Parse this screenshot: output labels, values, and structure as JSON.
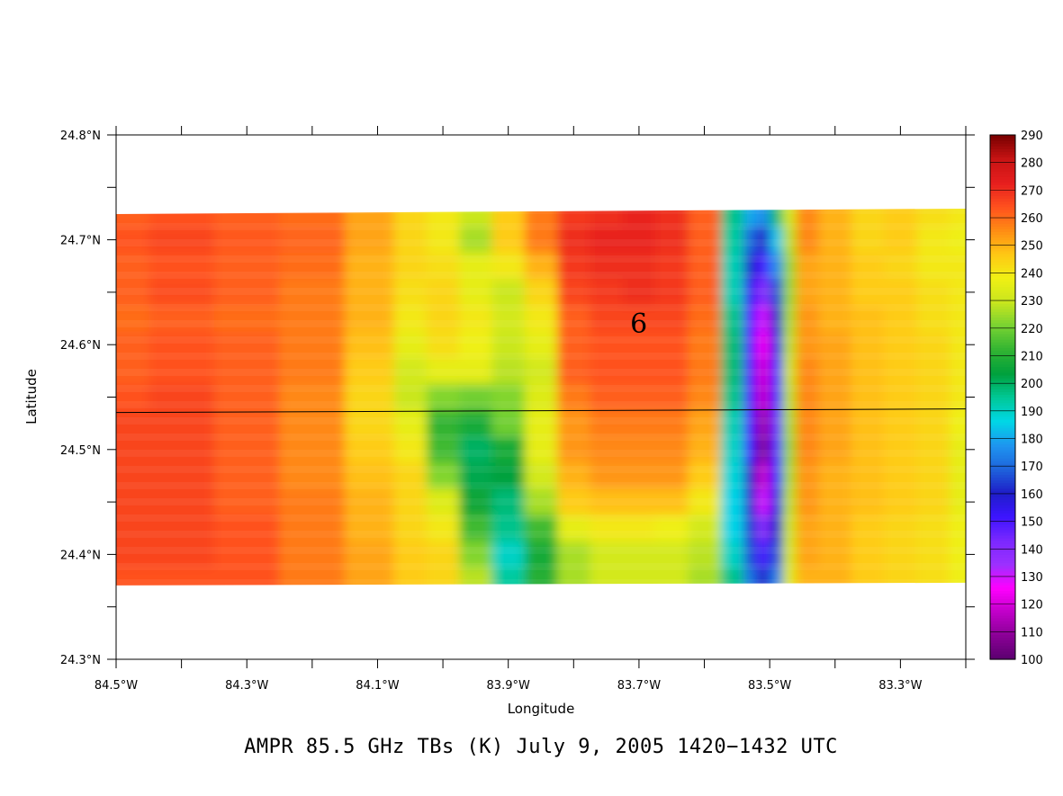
{
  "chart_data": {
    "type": "heatmap",
    "title": "AMPR 85.5 GHz TBs (K) July 9, 2005 1420−1432 UTC",
    "xlabel": "Longitude",
    "ylabel": "Latitude",
    "xlim": [
      -84.5,
      -83.2
    ],
    "ylim": [
      24.3,
      24.8
    ],
    "x_ticks": [
      {
        "value": -84.5,
        "label": "84.5°W"
      },
      {
        "value": -84.3,
        "label": "84.3°W"
      },
      {
        "value": -84.1,
        "label": "84.1°W"
      },
      {
        "value": -83.9,
        "label": "83.9°W"
      },
      {
        "value": -83.7,
        "label": "83.7°W"
      },
      {
        "value": -83.5,
        "label": "83.5°W"
      },
      {
        "value": -83.3,
        "label": "83.3°W"
      }
    ],
    "y_ticks": [
      {
        "value": 24.3,
        "label": "24.3°N"
      },
      {
        "value": 24.4,
        "label": "24.4°N"
      },
      {
        "value": 24.5,
        "label": "24.5°N"
      },
      {
        "value": 24.6,
        "label": "24.6°N"
      },
      {
        "value": 24.7,
        "label": "24.7°N"
      },
      {
        "value": 24.8,
        "label": "24.8°N"
      }
    ],
    "colorbar": {
      "min": 100,
      "max": 290,
      "labels": [
        "100",
        "110",
        "120",
        "130",
        "140",
        "150",
        "160",
        "170",
        "180",
        "190",
        "200",
        "210",
        "220",
        "230",
        "240",
        "250",
        "260",
        "270",
        "280",
        "290"
      ],
      "colors": [
        "#5a006e",
        "#8a0096",
        "#c000c8",
        "#ff00ff",
        "#9b30ff",
        "#7a28ff",
        "#3c14ff",
        "#1e1ec8",
        "#1e64dc",
        "#1e96f0",
        "#00d7e6",
        "#00c896",
        "#00a03c",
        "#32b432",
        "#78d232",
        "#c8e61e",
        "#f0f014",
        "#ffc814",
        "#ff8c14",
        "#ff501e",
        "#e61e1e",
        "#c81414",
        "#780000"
      ]
    },
    "swath": {
      "lat_bottom": 24.373,
      "lat_top": 24.728,
      "lon_min": -84.5,
      "lon_max": -83.2
    },
    "overlay_line": {
      "lat": 24.537
    },
    "annotation": {
      "text": "6",
      "lon": -83.7,
      "lat": 24.62
    },
    "grid": false,
    "lon_samples": [
      -84.5,
      -84.4,
      -84.3,
      -84.2,
      -84.1,
      -84.05,
      -84.0,
      -83.95,
      -83.9,
      -83.85,
      -83.8,
      -83.75,
      -83.7,
      -83.65,
      -83.6,
      -83.55,
      -83.53,
      -83.51,
      -83.49,
      -83.47,
      -83.45,
      -83.4,
      -83.35,
      -83.3,
      -83.25,
      -83.2
    ],
    "lat_samples": [
      24.725,
      24.7,
      24.675,
      24.65,
      24.625,
      24.6,
      24.575,
      24.55,
      24.525,
      24.5,
      24.475,
      24.45,
      24.425,
      24.4,
      24.375
    ],
    "tb_values_K": [
      [
        262,
        264,
        262,
        260,
        252,
        244,
        240,
        230,
        246,
        258,
        268,
        270,
        272,
        270,
        262,
        196,
        180,
        176,
        198,
        232,
        256,
        250,
        244,
        246,
        242,
        240
      ],
      [
        264,
        266,
        263,
        261,
        252,
        244,
        240,
        226,
        246,
        258,
        270,
        272,
        272,
        270,
        262,
        194,
        170,
        160,
        184,
        228,
        256,
        250,
        244,
        246,
        240,
        238
      ],
      [
        262,
        264,
        262,
        260,
        250,
        244,
        242,
        236,
        240,
        250,
        268,
        270,
        270,
        268,
        262,
        192,
        162,
        150,
        176,
        224,
        252,
        250,
        246,
        244,
        240,
        240
      ],
      [
        262,
        265,
        262,
        258,
        250,
        242,
        244,
        236,
        230,
        244,
        266,
        268,
        270,
        268,
        262,
        192,
        154,
        140,
        166,
        224,
        252,
        250,
        246,
        246,
        242,
        240
      ],
      [
        260,
        262,
        260,
        258,
        250,
        240,
        244,
        240,
        232,
        240,
        262,
        266,
        266,
        266,
        260,
        196,
        150,
        130,
        160,
        226,
        254,
        250,
        248,
        246,
        242,
        240
      ],
      [
        262,
        264,
        262,
        258,
        248,
        236,
        242,
        238,
        230,
        236,
        262,
        264,
        264,
        264,
        258,
        198,
        150,
        124,
        156,
        228,
        254,
        252,
        248,
        246,
        244,
        240
      ],
      [
        262,
        264,
        262,
        258,
        246,
        232,
        236,
        236,
        228,
        232,
        262,
        264,
        264,
        264,
        258,
        198,
        150,
        120,
        150,
        230,
        256,
        252,
        248,
        246,
        244,
        240
      ],
      [
        264,
        266,
        262,
        256,
        244,
        230,
        222,
        220,
        222,
        234,
        258,
        262,
        262,
        262,
        256,
        196,
        150,
        118,
        150,
        228,
        256,
        252,
        248,
        246,
        244,
        240
      ],
      [
        266,
        266,
        262,
        256,
        244,
        236,
        212,
        208,
        220,
        236,
        254,
        258,
        258,
        258,
        252,
        192,
        150,
        112,
        146,
        226,
        256,
        252,
        248,
        246,
        244,
        238
      ],
      [
        266,
        266,
        262,
        256,
        246,
        240,
        214,
        200,
        208,
        236,
        254,
        256,
        256,
        256,
        250,
        190,
        152,
        108,
        148,
        224,
        256,
        252,
        248,
        246,
        244,
        236
      ],
      [
        266,
        266,
        262,
        256,
        248,
        244,
        222,
        202,
        204,
        232,
        250,
        254,
        254,
        254,
        246,
        188,
        160,
        118,
        152,
        226,
        254,
        250,
        248,
        246,
        244,
        236
      ],
      [
        266,
        266,
        262,
        258,
        250,
        244,
        234,
        206,
        198,
        226,
        246,
        248,
        248,
        248,
        240,
        186,
        162,
        130,
        156,
        228,
        254,
        250,
        248,
        246,
        244,
        236
      ],
      [
        266,
        266,
        264,
        258,
        250,
        244,
        240,
        214,
        196,
        214,
        236,
        240,
        240,
        238,
        232,
        186,
        164,
        140,
        160,
        230,
        252,
        250,
        246,
        244,
        242,
        238
      ],
      [
        266,
        266,
        264,
        258,
        252,
        246,
        244,
        222,
        190,
        208,
        226,
        232,
        232,
        232,
        228,
        190,
        166,
        150,
        166,
        232,
        252,
        250,
        246,
        244,
        242,
        238
      ],
      [
        264,
        264,
        264,
        258,
        252,
        246,
        244,
        228,
        194,
        210,
        226,
        232,
        232,
        232,
        226,
        196,
        172,
        160,
        174,
        234,
        250,
        250,
        246,
        244,
        242,
        238
      ]
    ]
  }
}
